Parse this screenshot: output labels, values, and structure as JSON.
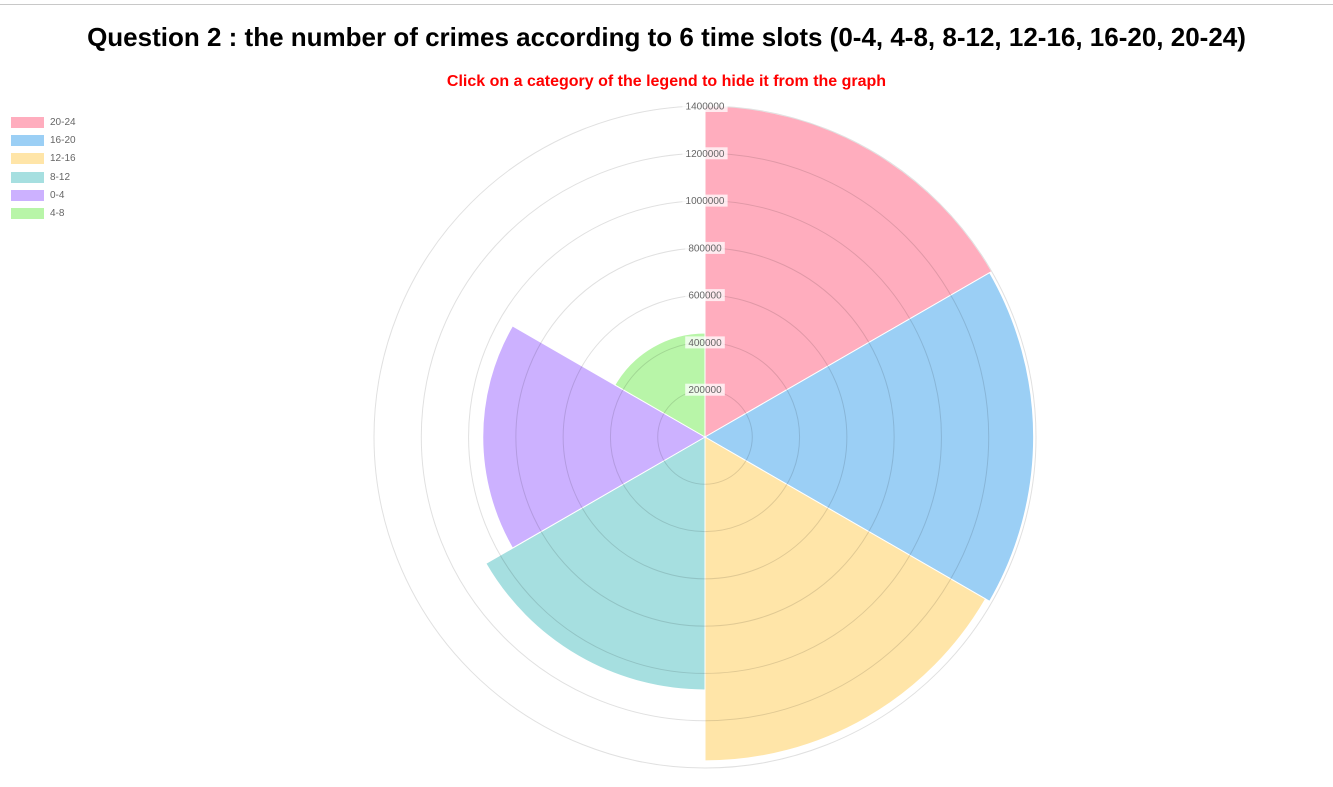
{
  "page": {
    "title": "Question 2 : the number of crimes according to 6 time slots (0-4, 4-8, 8-12, 12-16, 16-20, 20-24)",
    "instruction": "Click on a category of the legend to hide it from the graph"
  },
  "chart_data": {
    "type": "polarArea",
    "title": "Question 2 : the number of crimes according to 6 time slots (0-4, 4-8, 8-12, 12-16, 16-20, 20-24)",
    "categories": [
      "20-24",
      "16-20",
      "12-16",
      "8-12",
      "0-4",
      "4-8"
    ],
    "values": [
      1400000,
      1390000,
      1370000,
      1070000,
      940000,
      440000
    ],
    "colors": [
      "#ffadbe",
      "#9bcff5",
      "#ffe5a8",
      "#a6dfe0",
      "#ccb1ff",
      "#b8f5a8"
    ],
    "border_colors": [
      "#ff6384",
      "#36a2eb",
      "#ffce56",
      "#4bc0c0",
      "#9966ff",
      "#5fe05a"
    ],
    "rlim": [
      0,
      1400000
    ],
    "ticks": [
      "200000",
      "400000",
      "600000",
      "800000",
      "1000000",
      "1200000",
      "1400000"
    ],
    "grid": true,
    "legend_position": "top-left"
  }
}
